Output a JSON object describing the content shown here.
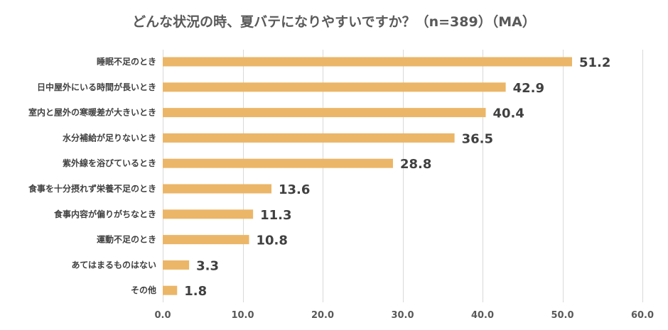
{
  "chart_data": {
    "type": "bar",
    "orientation": "horizontal",
    "title": "どんな状況の時、夏バテになりやすいですか？（n=389）（MA）",
    "categories": [
      "睡眠不足のとき",
      "日中屋外にいる時間が長いとき",
      "室内と屋外の寒暖差が大きいとき",
      "水分補給が足りないとき",
      "紫外線を浴びているとき",
      "食事を十分摂れず栄養不足のとき",
      "食事内容が偏りがちなとき",
      "運動不足のとき",
      "あてはまるものはない",
      "その他"
    ],
    "values": [
      51.2,
      42.9,
      40.4,
      36.5,
      28.8,
      13.6,
      11.3,
      10.8,
      3.3,
      1.8
    ],
    "value_labels": [
      "51.2",
      "42.9",
      "40.4",
      "36.5",
      "28.8",
      "13.6",
      "11.3",
      "10.8",
      "3.3",
      "1.8"
    ],
    "xlim": [
      0,
      60
    ],
    "ticks": [
      0,
      10,
      20,
      30,
      40,
      50,
      60
    ],
    "tick_labels": [
      "0.0",
      "10.0",
      "20.0",
      "30.0",
      "40.0",
      "50.0",
      "60.0"
    ],
    "xlabel": "",
    "ylabel": "",
    "grid": true,
    "legend": "none",
    "bar_color": "#EBB668",
    "grid_color": "#D9D9D9",
    "text_color": "#404040"
  }
}
